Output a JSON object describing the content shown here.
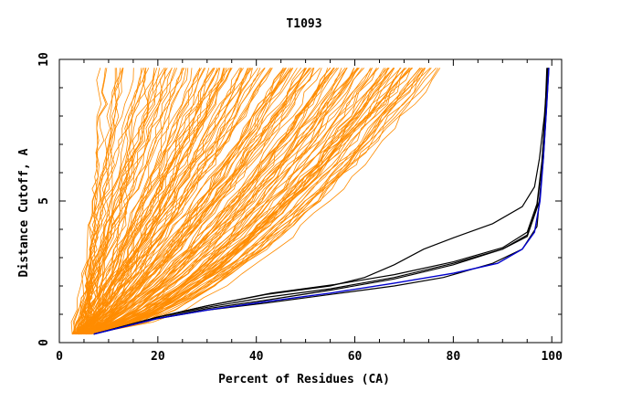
{
  "chart_data": {
    "type": "line",
    "title": "T1093",
    "xlabel": "Percent of Residues (CA)",
    "ylabel": "Distance Cutoff, A",
    "xlim": [
      0,
      102
    ],
    "ylim": [
      0,
      10
    ],
    "x_ticks": [
      0,
      20,
      40,
      60,
      80,
      100
    ],
    "y_ticks": [
      0,
      5,
      10
    ],
    "grid": false,
    "legend": "none",
    "colors": {
      "orange": "#ff8c00",
      "black": "#000000",
      "blue": "#0000cc"
    },
    "orange_group": {
      "count": 160,
      "start_x_range": [
        2.5,
        6.5
      ],
      "end_x_range": [
        9,
        77
      ],
      "y_start": 0.3,
      "y_end": 9.7
    },
    "series": [
      {
        "color": "black",
        "points": [
          [
            7,
            0.3
          ],
          [
            20,
            0.9
          ],
          [
            30,
            1.25
          ],
          [
            42,
            1.6
          ],
          [
            55,
            1.9
          ],
          [
            68,
            2.3
          ],
          [
            80,
            2.8
          ],
          [
            90,
            3.3
          ],
          [
            95,
            3.8
          ],
          [
            97,
            4.8
          ],
          [
            98,
            6.3
          ],
          [
            98.6,
            8
          ],
          [
            99,
            9.7
          ]
        ]
      },
      {
        "color": "black",
        "points": [
          [
            7,
            0.3
          ],
          [
            20,
            0.9
          ],
          [
            30,
            1.3
          ],
          [
            43,
            1.75
          ],
          [
            56,
            2.05
          ],
          [
            68,
            2.4
          ],
          [
            80,
            2.85
          ],
          [
            90,
            3.35
          ],
          [
            95,
            3.9
          ],
          [
            97,
            4.9
          ],
          [
            98,
            6.4
          ],
          [
            98.7,
            8.1
          ],
          [
            99.2,
            9.7
          ]
        ]
      },
      {
        "color": "black",
        "points": [
          [
            7,
            0.3
          ],
          [
            20,
            0.85
          ],
          [
            30,
            1.2
          ],
          [
            42,
            1.5
          ],
          [
            55,
            1.85
          ],
          [
            68,
            2.25
          ],
          [
            80,
            2.75
          ],
          [
            90,
            3.3
          ],
          [
            95,
            3.75
          ],
          [
            97.5,
            5
          ],
          [
            98.3,
            6.5
          ],
          [
            98.9,
            8.2
          ],
          [
            99.4,
            9.7
          ]
        ]
      },
      {
        "color": "black",
        "points": [
          [
            7,
            0.3
          ],
          [
            20,
            0.85
          ],
          [
            30,
            1.15
          ],
          [
            42,
            1.4
          ],
          [
            55,
            1.7
          ],
          [
            68,
            2.0
          ],
          [
            78,
            2.3
          ],
          [
            88,
            2.8
          ],
          [
            94,
            3.3
          ],
          [
            97,
            4.1
          ],
          [
            98,
            6.0
          ],
          [
            98.8,
            8.2
          ],
          [
            99.3,
            9.7
          ]
        ]
      },
      {
        "color": "black",
        "points": [
          [
            7,
            0.3
          ],
          [
            20,
            0.9
          ],
          [
            30,
            1.3
          ],
          [
            42,
            1.7
          ],
          [
            55,
            2.0
          ],
          [
            62,
            2.3
          ],
          [
            68,
            2.75
          ],
          [
            74,
            3.3
          ],
          [
            80,
            3.7
          ],
          [
            88,
            4.2
          ],
          [
            94,
            4.8
          ],
          [
            96.5,
            5.5
          ],
          [
            97.5,
            6.5
          ],
          [
            98.5,
            8
          ],
          [
            99.2,
            9.7
          ]
        ]
      },
      {
        "color": "blue",
        "points": [
          [
            7,
            0.3
          ],
          [
            20,
            0.85
          ],
          [
            30,
            1.15
          ],
          [
            42,
            1.45
          ],
          [
            55,
            1.75
          ],
          [
            68,
            2.1
          ],
          [
            80,
            2.45
          ],
          [
            89,
            2.8
          ],
          [
            94,
            3.3
          ],
          [
            96.5,
            3.9
          ],
          [
            97.6,
            5
          ],
          [
            98.3,
            6.5
          ],
          [
            98.9,
            8.2
          ],
          [
            99.4,
            9.7
          ]
        ]
      }
    ]
  }
}
